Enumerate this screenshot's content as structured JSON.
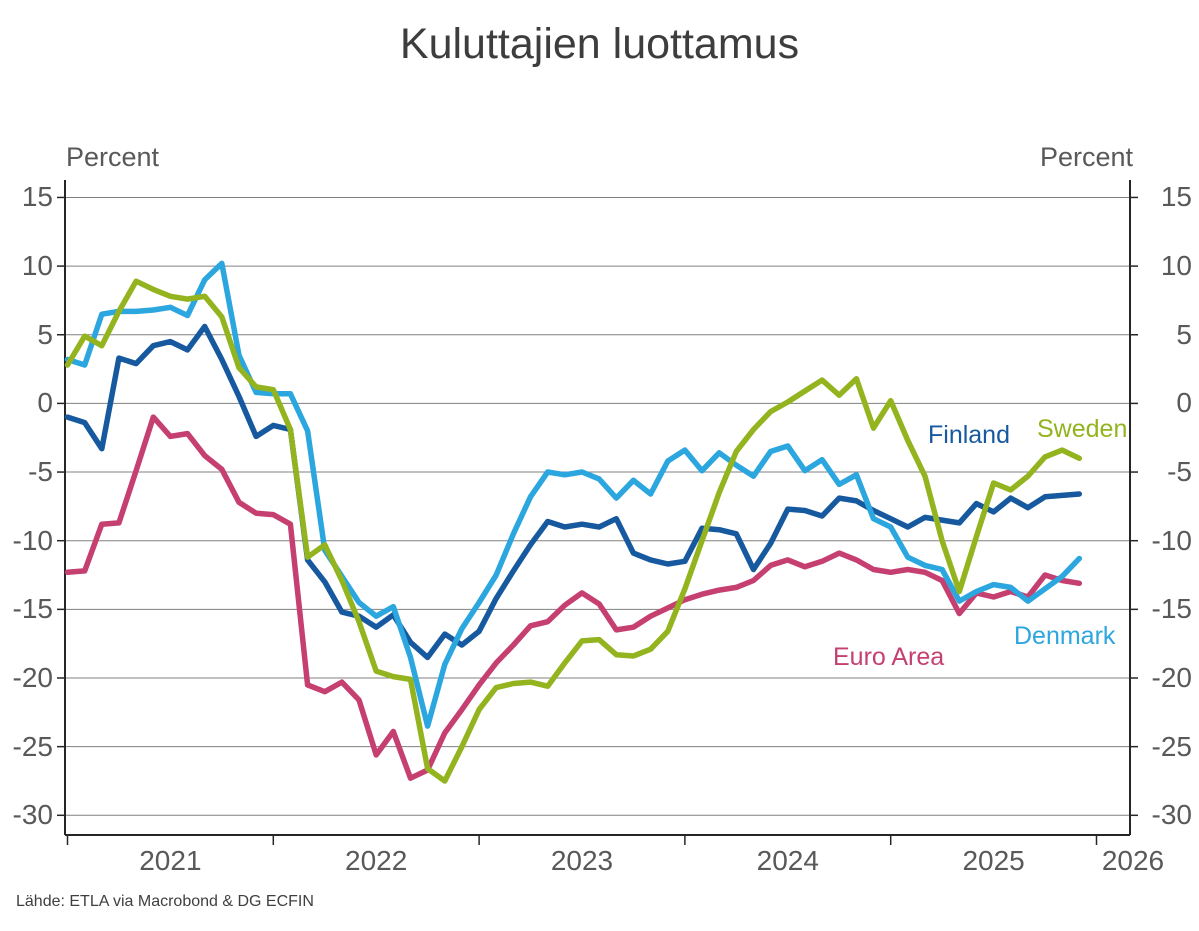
{
  "title": "Kuluttajien luottamus",
  "y_axis": {
    "label_left": "Percent",
    "label_right": "Percent",
    "ticks": [
      15,
      10,
      5,
      0,
      -5,
      -10,
      -15,
      -20,
      -25,
      -30
    ]
  },
  "x_axis": {
    "years": [
      2021,
      2022,
      2023,
      2024,
      2025,
      2026
    ]
  },
  "source": "Lähde: ETLA via Macrobond & DG ECFIN",
  "chart_data": {
    "type": "line",
    "frequency": "monthly",
    "x_start": "2021-01",
    "x_end": "2025-12",
    "ylabel": "Percent",
    "ylim": [
      -31.5,
      16.2
    ],
    "grid": true,
    "legend_position": "inline-labels",
    "gridline_color": "#808080",
    "axis_color": "#262626",
    "series": [
      {
        "name": "Finland",
        "color": "#17599F",
        "values": [
          -1.0,
          -1.4,
          -3.3,
          3.3,
          2.9,
          4.2,
          4.5,
          3.9,
          5.6,
          3.2,
          0.5,
          -2.4,
          -1.6,
          -1.9,
          -11.4,
          -13.0,
          -15.2,
          -15.5,
          -16.3,
          -15.4,
          -17.4,
          -18.5,
          -16.8,
          -17.6,
          -16.6,
          -14.2,
          -12.2,
          -10.3,
          -8.6,
          -9.0,
          -8.8,
          -9.0,
          -8.4,
          -10.9,
          -11.4,
          -11.7,
          -11.5,
          -9.1,
          -9.2,
          -9.5,
          -12.1,
          -10.2,
          -7.7,
          -7.8,
          -8.2,
          -6.9,
          -7.1,
          -7.8,
          -8.4,
          -9.0,
          -8.3,
          -8.5,
          -8.7,
          -7.3,
          -7.9,
          -6.9,
          -7.6,
          -6.8,
          -6.7,
          -6.6
        ]
      },
      {
        "name": "Euro Area",
        "color": "#C54070",
        "values": [
          -12.3,
          -12.2,
          -8.8,
          -8.7,
          -4.9,
          -1.0,
          -2.4,
          -2.2,
          -3.8,
          -4.8,
          -7.2,
          -8.0,
          -8.1,
          -8.8,
          -20.5,
          -21.0,
          -20.3,
          -21.6,
          -25.6,
          -23.9,
          -27.3,
          -26.7,
          -24.0,
          -22.3,
          -20.5,
          -18.9,
          -17.6,
          -16.2,
          -15.9,
          -14.7,
          -13.8,
          -14.6,
          -16.5,
          -16.3,
          -15.5,
          -14.9,
          -14.3,
          -13.9,
          -13.6,
          -13.4,
          -12.9,
          -11.8,
          -11.4,
          -11.9,
          -11.5,
          -10.9,
          -11.4,
          -12.1,
          -12.3,
          -12.1,
          -12.3,
          -12.9,
          -15.3,
          -13.8,
          -14.1,
          -13.7,
          -14.1,
          -12.5,
          -12.9,
          -13.1
        ]
      },
      {
        "name": "Denmark",
        "color": "#2BA6DF",
        "values": [
          3.2,
          2.8,
          6.5,
          6.7,
          6.7,
          6.8,
          7.0,
          6.4,
          9.0,
          10.2,
          3.5,
          0.8,
          0.7,
          0.7,
          -2.0,
          -10.7,
          -12.6,
          -14.5,
          -15.5,
          -14.8,
          -18.5,
          -23.5,
          -19.0,
          -16.4,
          -14.5,
          -12.5,
          -9.5,
          -6.8,
          -5.0,
          -5.2,
          -5.0,
          -5.5,
          -6.9,
          -5.6,
          -6.6,
          -4.2,
          -3.4,
          -4.9,
          -3.6,
          -4.5,
          -5.3,
          -3.5,
          -3.1,
          -4.9,
          -4.1,
          -5.9,
          -5.2,
          -8.4,
          -9.0,
          -11.2,
          -11.8,
          -12.1,
          -14.4,
          -13.7,
          -13.2,
          -13.4,
          -14.4,
          -13.5,
          -12.6,
          -11.3
        ]
      },
      {
        "name": "Sweden",
        "color": "#93B41E",
        "values": [
          2.8,
          4.9,
          4.2,
          6.7,
          8.9,
          8.3,
          7.8,
          7.6,
          7.8,
          6.3,
          2.6,
          1.2,
          1.0,
          -1.9,
          -11.2,
          -10.3,
          -12.9,
          -15.9,
          -19.5,
          -19.9,
          -20.1,
          -26.6,
          -27.5,
          -25.0,
          -22.3,
          -20.7,
          -20.4,
          -20.3,
          -20.6,
          -18.9,
          -17.3,
          -17.2,
          -18.3,
          -18.4,
          -17.9,
          -16.6,
          -13.5,
          -10.0,
          -6.5,
          -3.5,
          -1.9,
          -0.6,
          0.1,
          0.9,
          1.7,
          0.6,
          1.8,
          -1.8,
          0.2,
          -2.7,
          -5.3,
          -10.0,
          -13.7,
          -9.7,
          -5.8,
          -6.3,
          -5.3,
          -3.9,
          -3.4,
          -4.0
        ]
      }
    ]
  }
}
